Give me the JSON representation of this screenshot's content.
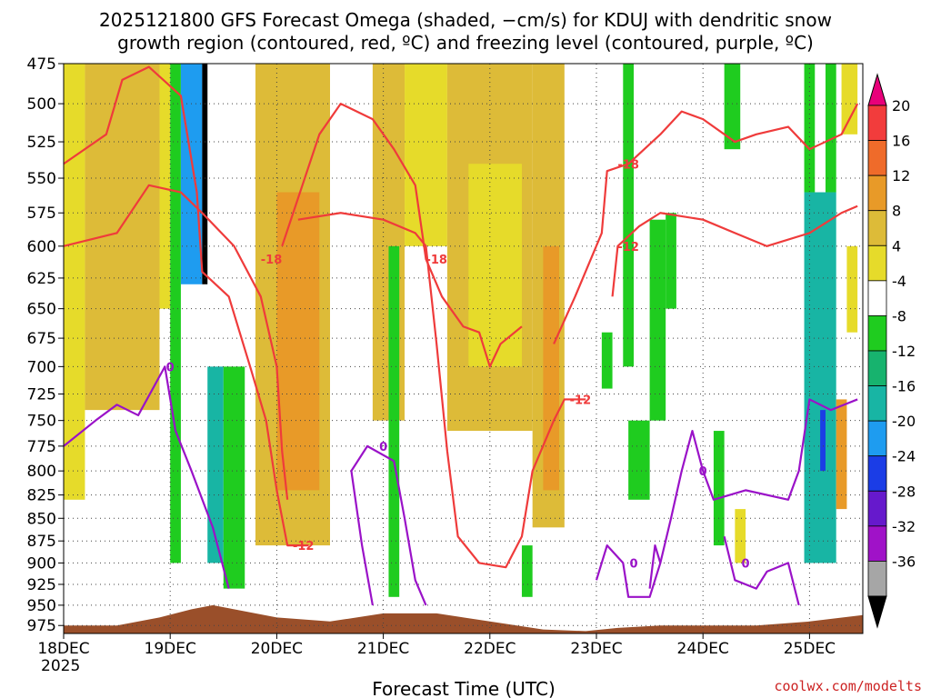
{
  "chart_data": {
    "type": "heatmap",
    "title_lines": [
      "2025121800 GFS Forecast Omega (shaded, −cm/s) for KDUJ with dendritic snow",
      "growth region (contoured, red, ºC) and freezing level (contoured, purple, ºC)"
    ],
    "xlabel": "Forecast Time (UTC)",
    "credit": "coolwx.com/modelts",
    "x_ticks": [
      "18DEC",
      "19DEC",
      "20DEC",
      "21DEC",
      "22DEC",
      "23DEC",
      "24DEC",
      "25DEC"
    ],
    "x_year": "2025",
    "x_range_days": [
      0,
      7.5
    ],
    "y_ticks": [
      "475",
      "500",
      "525",
      "550",
      "575",
      "600",
      "625",
      "650",
      "675",
      "700",
      "725",
      "750",
      "775",
      "800",
      "825",
      "850",
      "875",
      "900",
      "925",
      "950",
      "975"
    ],
    "y_range_hPa": [
      475,
      985
    ],
    "y_scale": "log-pressure",
    "colorbar": {
      "labels": [
        "20",
        "16",
        "12",
        "8",
        "4",
        "-4",
        "-8",
        "-12",
        "-16",
        "-20",
        "-24",
        "-28",
        "-32",
        "-36"
      ],
      "bins": [
        {
          "color": "#e8007a"
        },
        {
          "color": "#f23c3c"
        },
        {
          "color": "#ef6b2a"
        },
        {
          "color": "#e89a28"
        },
        {
          "color": "#ddbb38"
        },
        {
          "color": "#e6db2a"
        },
        {
          "color": "#ffffff"
        },
        {
          "color": "#1fcc1f"
        },
        {
          "color": "#17b36e"
        },
        {
          "color": "#18b5a4"
        },
        {
          "color": "#1e9cf0"
        },
        {
          "color": "#1b3de6"
        },
        {
          "color": "#6619cc"
        },
        {
          "color": "#a012c8"
        },
        {
          "color": "#a6a6a6"
        },
        {
          "color": "#000000"
        }
      ]
    },
    "shaded_regions": [
      {
        "x": [
          0,
          0.2
        ],
        "p": [
          475,
          830
        ],
        "color": "#e6db2a"
      },
      {
        "x": [
          0.2,
          0.9
        ],
        "p": [
          475,
          740
        ],
        "color": "#ddbb38"
      },
      {
        "x": [
          0.9,
          1.0
        ],
        "p": [
          475,
          650
        ],
        "color": "#e6db2a"
      },
      {
        "x": [
          1.0,
          1.1
        ],
        "p": [
          475,
          900
        ],
        "color": "#1fcc1f"
      },
      {
        "x": [
          1.1,
          1.3
        ],
        "p": [
          475,
          630
        ],
        "color": "#1e9cf0"
      },
      {
        "x": [
          1.3,
          1.35
        ],
        "p": [
          475,
          630
        ],
        "color": "#000000"
      },
      {
        "x": [
          1.35,
          1.5
        ],
        "p": [
          700,
          900
        ],
        "color": "#18b5a4"
      },
      {
        "x": [
          1.5,
          1.7
        ],
        "p": [
          700,
          930
        ],
        "color": "#1fcc1f"
      },
      {
        "x": [
          1.8,
          2.5
        ],
        "p": [
          475,
          880
        ],
        "color": "#ddbb38"
      },
      {
        "x": [
          2.0,
          2.4
        ],
        "p": [
          560,
          820
        ],
        "color": "#e89a28"
      },
      {
        "x": [
          2.9,
          3.2
        ],
        "p": [
          475,
          750
        ],
        "color": "#ddbb38"
      },
      {
        "x": [
          3.05,
          3.15
        ],
        "p": [
          600,
          940
        ],
        "color": "#1fcc1f"
      },
      {
        "x": [
          3.2,
          3.6
        ],
        "p": [
          475,
          600
        ],
        "color": "#e6db2a"
      },
      {
        "x": [
          3.6,
          4.4
        ],
        "p": [
          475,
          760
        ],
        "color": "#ddbb38"
      },
      {
        "x": [
          3.8,
          4.3
        ],
        "p": [
          540,
          700
        ],
        "color": "#e6db2a"
      },
      {
        "x": [
          4.4,
          4.7
        ],
        "p": [
          475,
          860
        ],
        "color": "#ddbb38"
      },
      {
        "x": [
          4.5,
          4.65
        ],
        "p": [
          600,
          820
        ],
        "color": "#e89a28"
      },
      {
        "x": [
          4.3,
          4.4
        ],
        "p": [
          880,
          940
        ],
        "color": "#1fcc1f"
      },
      {
        "x": [
          5.05,
          5.15
        ],
        "p": [
          670,
          720
        ],
        "color": "#1fcc1f"
      },
      {
        "x": [
          5.25,
          5.35
        ],
        "p": [
          475,
          700
        ],
        "color": "#1fcc1f"
      },
      {
        "x": [
          5.3,
          5.5
        ],
        "p": [
          750,
          830
        ],
        "color": "#1fcc1f"
      },
      {
        "x": [
          5.5,
          5.65
        ],
        "p": [
          580,
          750
        ],
        "color": "#1fcc1f"
      },
      {
        "x": [
          5.65,
          5.75
        ],
        "p": [
          575,
          650
        ],
        "color": "#1fcc1f"
      },
      {
        "x": [
          6.1,
          6.2
        ],
        "p": [
          760,
          880
        ],
        "color": "#1fcc1f"
      },
      {
        "x": [
          6.3,
          6.4
        ],
        "p": [
          840,
          900
        ],
        "color": "#e6db2a"
      },
      {
        "x": [
          6.2,
          6.35
        ],
        "p": [
          475,
          530
        ],
        "color": "#1fcc1f"
      },
      {
        "x": [
          6.95,
          7.25
        ],
        "p": [
          560,
          900
        ],
        "color": "#18b5a4"
      },
      {
        "x": [
          6.95,
          7.05
        ],
        "p": [
          475,
          560
        ],
        "color": "#1fcc1f"
      },
      {
        "x": [
          7.15,
          7.25
        ],
        "p": [
          475,
          560
        ],
        "color": "#1fcc1f"
      },
      {
        "x": [
          7.1,
          7.15
        ],
        "p": [
          740,
          800
        ],
        "color": "#1b3de6"
      },
      {
        "x": [
          7.25,
          7.35
        ],
        "p": [
          730,
          840
        ],
        "color": "#e89a28"
      },
      {
        "x": [
          7.3,
          7.45
        ],
        "p": [
          475,
          520
        ],
        "color": "#e6db2a"
      },
      {
        "x": [
          7.35,
          7.45
        ],
        "p": [
          600,
          670
        ],
        "color": "#e6db2a"
      }
    ],
    "contours_dgz": [
      {
        "points": [
          [
            0,
            540
          ],
          [
            0.4,
            520
          ],
          [
            0.55,
            485
          ],
          [
            0.8,
            477
          ],
          [
            1.1,
            495
          ],
          [
            1.25,
            560
          ],
          [
            1.3,
            620
          ],
          [
            1.55,
            640
          ],
          [
            1.75,
            700
          ],
          [
            1.9,
            750
          ],
          [
            2.0,
            820
          ],
          [
            2.1,
            880
          ],
          [
            2.3,
            880
          ]
        ],
        "label": "-12",
        "label_at": [
          2.25,
          880
        ]
      },
      {
        "points": [
          [
            0,
            600
          ],
          [
            0.5,
            590
          ],
          [
            0.8,
            555
          ],
          [
            1.1,
            560
          ],
          [
            1.3,
            575
          ],
          [
            1.6,
            600
          ],
          [
            1.85,
            640
          ],
          [
            2.0,
            700
          ],
          [
            2.05,
            780
          ],
          [
            2.1,
            830
          ]
        ],
        "label": "-18",
        "label_at": [
          1.95,
          610
        ]
      },
      {
        "points": [
          [
            2.05,
            600
          ],
          [
            2.4,
            520
          ],
          [
            2.6,
            500
          ],
          [
            2.9,
            510
          ],
          [
            3.1,
            530
          ],
          [
            3.3,
            555
          ],
          [
            3.4,
            610
          ],
          [
            3.55,
            640
          ],
          [
            3.75,
            665
          ],
          [
            3.9,
            670
          ],
          [
            4.0,
            700
          ],
          [
            4.1,
            680
          ],
          [
            4.3,
            665
          ]
        ],
        "label": "-18",
        "label_at": [
          3.5,
          610
        ]
      },
      {
        "points": [
          [
            2.2,
            580
          ],
          [
            2.6,
            575
          ],
          [
            3.0,
            580
          ],
          [
            3.3,
            590
          ],
          [
            3.4,
            600
          ],
          [
            3.5,
            680
          ],
          [
            3.6,
            780
          ],
          [
            3.7,
            870
          ],
          [
            3.9,
            900
          ],
          [
            4.15,
            905
          ],
          [
            4.3,
            870
          ],
          [
            4.4,
            800
          ],
          [
            4.6,
            750
          ],
          [
            4.7,
            730
          ],
          [
            4.9,
            730
          ]
        ],
        "label": "-12",
        "label_at": [
          4.85,
          730
        ]
      },
      {
        "points": [
          [
            4.6,
            680
          ],
          [
            4.8,
            640
          ],
          [
            5.05,
            590
          ],
          [
            5.1,
            545
          ],
          [
            5.3,
            540
          ],
          [
            5.6,
            520
          ],
          [
            5.8,
            505
          ],
          [
            6.0,
            510
          ],
          [
            6.3,
            525
          ],
          [
            6.5,
            520
          ],
          [
            6.8,
            515
          ],
          [
            7.0,
            530
          ],
          [
            7.3,
            520
          ],
          [
            7.45,
            500
          ]
        ],
        "label": "-18",
        "label_at": [
          5.3,
          540
        ]
      },
      {
        "points": [
          [
            5.15,
            640
          ],
          [
            5.2,
            600
          ],
          [
            5.4,
            585
          ],
          [
            5.6,
            575
          ],
          [
            6.0,
            580
          ],
          [
            6.3,
            590
          ],
          [
            6.6,
            600
          ],
          [
            7.0,
            590
          ],
          [
            7.3,
            575
          ],
          [
            7.45,
            570
          ]
        ],
        "label": "-12",
        "label_at": [
          5.3,
          600
        ]
      }
    ],
    "contours_freezing": [
      {
        "points": [
          [
            0,
            775
          ],
          [
            0.3,
            750
          ],
          [
            0.5,
            735
          ],
          [
            0.7,
            745
          ],
          [
            0.95,
            700
          ],
          [
            1.05,
            760
          ],
          [
            1.2,
            800
          ],
          [
            1.4,
            860
          ],
          [
            1.55,
            930
          ]
        ],
        "label": "0",
        "label_at": [
          1.0,
          700
        ]
      },
      {
        "points": [
          [
            2.9,
            950
          ],
          [
            2.8,
            880
          ],
          [
            2.7,
            800
          ],
          [
            2.85,
            775
          ],
          [
            3.1,
            790
          ],
          [
            3.2,
            850
          ],
          [
            3.3,
            920
          ],
          [
            3.4,
            950
          ]
        ],
        "label": "0",
        "label_at": [
          3.0,
          775
        ]
      },
      {
        "points": [
          [
            5.0,
            920
          ],
          [
            5.1,
            880
          ],
          [
            5.25,
            900
          ],
          [
            5.3,
            940
          ],
          [
            5.5,
            940
          ],
          [
            5.6,
            900
          ],
          [
            5.55,
            880
          ],
          [
            5.5,
            930
          ]
        ],
        "label": "0",
        "label_at": [
          5.35,
          900
        ]
      },
      {
        "points": [
          [
            5.6,
            900
          ],
          [
            5.7,
            850
          ],
          [
            5.8,
            800
          ],
          [
            5.9,
            760
          ],
          [
            6.0,
            800
          ],
          [
            6.1,
            830
          ],
          [
            6.4,
            820
          ],
          [
            6.8,
            830
          ],
          [
            6.9,
            800
          ],
          [
            7.0,
            730
          ],
          [
            7.2,
            740
          ],
          [
            7.45,
            730
          ]
        ],
        "label": "0",
        "label_at": [
          6.0,
          800
        ]
      },
      {
        "points": [
          [
            6.2,
            870
          ],
          [
            6.3,
            920
          ],
          [
            6.5,
            930
          ],
          [
            6.6,
            910
          ],
          [
            6.8,
            900
          ],
          [
            6.9,
            950
          ]
        ],
        "label": "0",
        "label_at": [
          6.4,
          900
        ]
      }
    ],
    "terrain_surface": {
      "x": [
        0,
        0.5,
        0.9,
        1.2,
        1.4,
        1.6,
        2.0,
        2.5,
        3.0,
        3.5,
        4.0,
        4.5,
        4.9,
        5.2,
        5.6,
        6.0,
        6.5,
        7.0,
        7.5
      ],
      "p": [
        975,
        975,
        965,
        955,
        950,
        955,
        965,
        970,
        960,
        960,
        970,
        980,
        982,
        978,
        975,
        975,
        975,
        970,
        962
      ]
    }
  }
}
